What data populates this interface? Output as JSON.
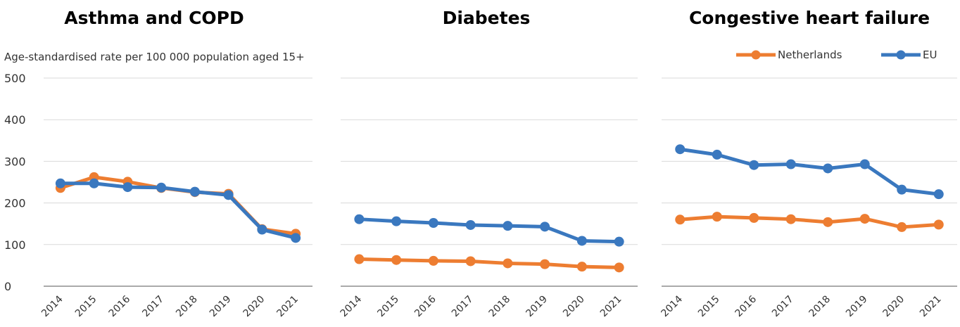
{
  "ylabel": "Age-standardised rate per 100 000 population aged 15+",
  "legend": [
    {
      "name": "Netherlands",
      "color": "#ED7D31"
    },
    {
      "name": "EU",
      "color": "#3A78BF"
    }
  ],
  "y_ticks": [
    "0",
    "100",
    "200",
    "300",
    "400",
    "500"
  ],
  "chart_data": [
    {
      "type": "line",
      "title": "Asthma and COPD",
      "categories": [
        "2014",
        "2015",
        "2016",
        "2017",
        "2018",
        "2019",
        "2020",
        "2021"
      ],
      "ylim": [
        0,
        500
      ],
      "series": [
        {
          "name": "Netherlands",
          "values": [
            236,
            262,
            251,
            236,
            226,
            222,
            137,
            126
          ]
        },
        {
          "name": "EU",
          "values": [
            247,
            247,
            238,
            237,
            227,
            219,
            136,
            116
          ]
        }
      ]
    },
    {
      "type": "line",
      "title": "Diabetes",
      "categories": [
        "2014",
        "2015",
        "2016",
        "2017",
        "2018",
        "2019",
        "2020",
        "2021"
      ],
      "ylim": [
        0,
        500
      ],
      "series": [
        {
          "name": "Netherlands",
          "values": [
            65,
            63,
            61,
            60,
            55,
            53,
            47,
            45
          ]
        },
        {
          "name": "EU",
          "values": [
            161,
            156,
            152,
            147,
            145,
            143,
            109,
            107
          ]
        }
      ]
    },
    {
      "type": "line",
      "title": "Congestive heart failure",
      "categories": [
        "2014",
        "2015",
        "2016",
        "2017",
        "2018",
        "2019",
        "2020",
        "2021"
      ],
      "ylim": [
        0,
        500
      ],
      "series": [
        {
          "name": "Netherlands",
          "values": [
            160,
            167,
            164,
            161,
            154,
            162,
            142,
            148
          ]
        },
        {
          "name": "EU",
          "values": [
            329,
            316,
            291,
            293,
            283,
            293,
            232,
            221
          ]
        }
      ]
    }
  ]
}
